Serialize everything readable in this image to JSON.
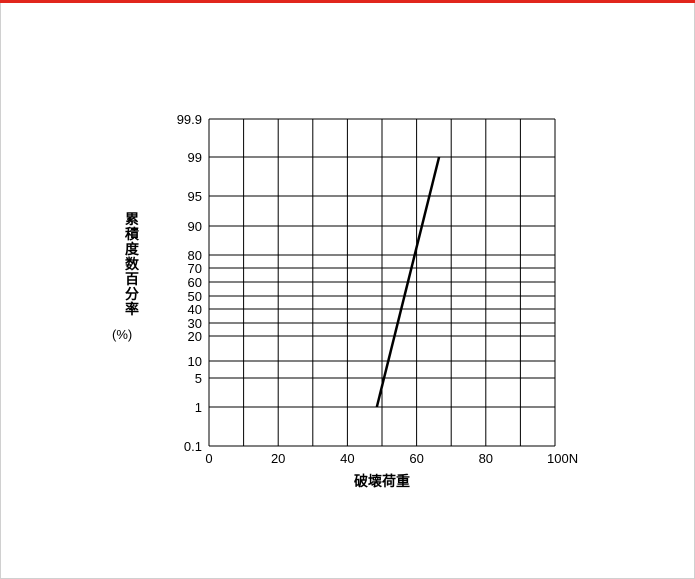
{
  "colors": {
    "accent": "#e1261c",
    "grid": "#000000",
    "line": "#000000"
  },
  "chart_data": {
    "type": "line",
    "ylabel": "累積度数百分率",
    "ylabel_unit": "(%)",
    "xlabel": "破壊荷重",
    "xlim": [
      0,
      100
    ],
    "x_ticks": [
      "0",
      "20",
      "40",
      "60",
      "80",
      "100N"
    ],
    "y_scale": "probability",
    "y_ticks": [
      "0.1",
      "1",
      "5",
      "10",
      "20",
      "30",
      "40",
      "50",
      "60",
      "70",
      "80",
      "90",
      "95",
      "99",
      "99.9"
    ],
    "grid": true,
    "series": [
      {
        "x": [
          48.5,
          66.5
        ],
        "y": [
          1,
          99
        ]
      }
    ]
  }
}
